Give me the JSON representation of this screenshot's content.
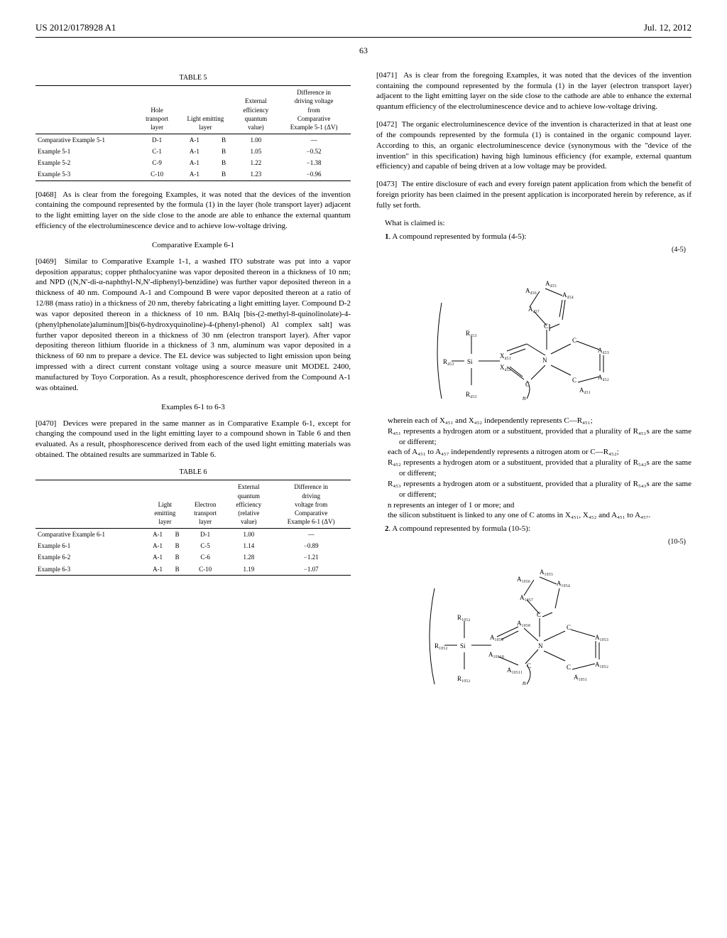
{
  "header": {
    "left": "US 2012/0178928 A1",
    "right": "Jul. 12, 2012"
  },
  "page_number": "63",
  "table5": {
    "title": "TABLE 5",
    "columns": [
      "",
      "Hole transport layer",
      "Light emitting layer",
      "",
      "External efficiency quantum value)",
      "Difference in driving voltage from Comparative Example 5-1 (ΔV)"
    ],
    "rows": [
      [
        "Comparative Example 5-1",
        "D-1",
        "A-1",
        "B",
        "1.00",
        "—"
      ],
      [
        "Example 5-1",
        "C-1",
        "A-1",
        "B",
        "1.05",
        "−0.52"
      ],
      [
        "Example 5-2",
        "C-9",
        "A-1",
        "B",
        "1.22",
        "−1.38"
      ],
      [
        "Example 5-3",
        "C-10",
        "A-1",
        "B",
        "1.23",
        "−0.96"
      ]
    ]
  },
  "para0468": {
    "num": "[0468]",
    "text": "As is clear from the foregoing Examples, it was noted that the devices of the invention containing the compound represented by the formula (1) in the layer (hole transport layer) adjacent to the light emitting layer on the side close to the anode are able to enhance the external quantum efficiency of the electroluminescence device and to achieve low-voltage driving."
  },
  "heading61c": "Comparative Example 6-1",
  "para0469": {
    "num": "[0469]",
    "text": "Similar to Comparative Example 1-1, a washed ITO substrate was put into a vapor deposition apparatus; copper phthalocyanine was vapor deposited thereon in a thickness of 10 nm; and NPD ((N,N'-di-α-naphthyl-N,N'-diphenyl)-benzidine) was further vapor deposited thereon in a thickness of 40 nm. Compound A-1 and Compound B were vapor deposited thereon at a ratio of 12/88 (mass ratio) in a thickness of 20 nm, thereby fabricating a light emitting layer. Compound D-2 was vapor deposited thereon in a thickness of 10 nm. BAlq [bis-(2-methyl-8-quinolinolate)-4-(phenylphenolate)aluminum][bis(6-hydroxyquinoline)-4-(phenyl-phenol) Al complex salt] was further vapor deposited thereon in a thickness of 30 nm (electron transport layer). After vapor depositing thereon lithium fluoride in a thickness of 3 nm, aluminum was vapor deposited in a thickness of 60 nm to prepare a device. The EL device was subjected to light emission upon being impressed with a direct current constant voltage using a source measure unit MODEL 2400, manufactured by Toyo Corporation. As a result, phosphorescence derived from the Compound A-1 was obtained."
  },
  "heading61e": "Examples 6-1 to 6-3",
  "para0470": {
    "num": "[0470]",
    "text": "Devices were prepared in the same manner as in Comparative Example 6-1, except for changing the compound used in the light emitting layer to a compound shown in Table 6 and then evaluated. As a result, phosphorescence derived from each of the used light emitting materials was obtained. The obtained results are summarized in Table 6."
  },
  "table6": {
    "title": "TABLE 6",
    "columns": [
      "",
      "Light emitting layer",
      "",
      "Electron transport layer",
      "External quantum efficiency (relative value)",
      "Difference in driving voltage from Comparative Example 6-1 (ΔV)"
    ],
    "rows": [
      [
        "Comparative Example 6-1",
        "A-1",
        "B",
        "D-1",
        "1.00",
        "—"
      ],
      [
        "Example 6-1",
        "A-1",
        "B",
        "C-5",
        "1.14",
        "−0.89"
      ],
      [
        "Example 6-2",
        "A-1",
        "B",
        "C-6",
        "1.28",
        "−1.21"
      ],
      [
        "Example 6-3",
        "A-1",
        "B",
        "C-10",
        "1.19",
        "−1.07"
      ]
    ]
  },
  "para0471": {
    "num": "[0471]",
    "text": "As is clear from the foregoing Examples, it was noted that the devices of the invention containing the compound represented by the formula (1) in the layer (electron transport layer) adjacent to the light emitting layer on the side close to the cathode are able to enhance the external quantum efficiency of the electroluminescence device and to achieve low-voltage driving."
  },
  "para0472": {
    "num": "[0472]",
    "text": "The organic electroluminescence device of the invention is characterized in that at least one of the compounds represented by the formula (1) is contained in the organic compound layer. According to this, an organic electroluminescence device (synonymous with the \"device of the invention\" in this specification) having high luminous efficiency (for example, external quantum efficiency) and capable of being driven at a low voltage may be provided."
  },
  "para0473": {
    "num": "[0473]",
    "text": "The entire disclosure of each and every foreign patent application from which the benefit of foreign priority has been claimed in the present application is incorporated herein by reference, as if fully set forth."
  },
  "claims_lead": "What is claimed is:",
  "claim1": {
    "num": "1",
    "intro": ". A compound represented by formula (4-5):",
    "formula_label": "(4-5)",
    "wherein": "wherein each of X₄₅₁ and X₄₅₂ independently represents C—R₄₅₁;",
    "parts": [
      "R₄₅₁ represents a hydrogen atom or a substituent, provided that a plurality of R₄₅₁s are the same or different;",
      "each of A₄₅₁ to A₄₅₇ independently represents a nitrogen atom or C—R₄₅₂;",
      "R₄₅₂ represents a hydrogen atom or a substituent, provided that a plurality of R₅₄₂s are the same or different;",
      "R₄₅₃ represents a hydrogen atom or a substituent, provided that a plurality of R₅₄₃s are the same or different;",
      "n represents an integer of 1 or more; and",
      "the silicon substituent is linked to any one of C atoms in X₄₅₁, X₄₅₂ and A₄₅₁ to A₄₅₇."
    ]
  },
  "claim2": {
    "num": "2",
    "intro": ". A compound represented by formula (10-5):",
    "formula_label": "(10-5)"
  },
  "formula45_svg": {
    "labels": {
      "A451": "A₄₅₁",
      "A452": "A₄₅₂",
      "A453": "A₄₅₃",
      "A454": "A₄₅₄",
      "A455": "A₄₅₅",
      "A456": "A₄₅₆",
      "A457": "A₄₅₇",
      "X451": "X₄₅₁",
      "X452": "X₄₅₂",
      "R453": "R₄₅₃",
      "Si": "Si",
      "N": "N",
      "C": "C",
      "n": "n"
    }
  },
  "formula105_svg": {
    "labels": {
      "A1051": "A₁₀₅₁",
      "A1052": "A₁₀₅₂",
      "A1053": "A₁₀₅₃",
      "A1054": "A₁₀₅₄",
      "A1055": "A₁₀₅₅",
      "A1056": "A₁₀₅₆",
      "A1057": "A₁₀₅₇",
      "A1058": "A₁₀₅₈",
      "A1059": "A₁₀₅₉",
      "A10510": "A₁₀₅₁₀",
      "A10511": "A₁₀₅₁₁",
      "R1052": "R₁₀₅₂",
      "Si": "Si",
      "N": "N",
      "C": "C",
      "n": "n"
    }
  }
}
